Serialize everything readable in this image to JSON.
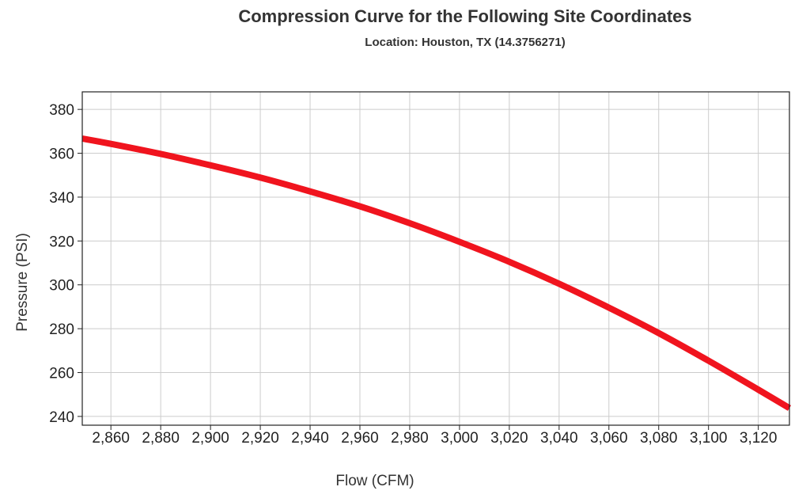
{
  "chart_data": {
    "type": "line",
    "title": "Compression Curve for the Following Site Coordinates",
    "subtitle": "Location: Houston, TX (14.3756271)",
    "xlabel": "Flow (CFM)",
    "ylabel": "Pressure (PSI)",
    "xlim": [
      2848.5,
      3132.5
    ],
    "ylim": [
      236,
      388
    ],
    "x_ticks": [
      2860,
      2880,
      2900,
      2920,
      2940,
      2960,
      2980,
      3000,
      3020,
      3040,
      3060,
      3080,
      3100,
      3120
    ],
    "x_tick_labels": [
      "2,860",
      "2,880",
      "2,900",
      "2,920",
      "2,940",
      "2,960",
      "2,980",
      "3,000",
      "3,020",
      "3,040",
      "3,060",
      "3,080",
      "3,100",
      "3,120"
    ],
    "y_ticks": [
      240,
      260,
      280,
      300,
      320,
      340,
      360,
      380
    ],
    "y_tick_labels": [
      "240",
      "260",
      "280",
      "300",
      "320",
      "340",
      "360",
      "380"
    ],
    "grid": true,
    "series": [
      {
        "color": "#f0141e",
        "x": [
          2848.5,
          2860,
          2880,
          2900,
          2920,
          2940,
          2960,
          2980,
          3000,
          3020,
          3040,
          3060,
          3080,
          3100,
          3120,
          3132.5
        ],
        "y": [
          366.7,
          364.3,
          359.7,
          354.5,
          348.9,
          342.6,
          335.8,
          328.1,
          319.6,
          310.5,
          300.5,
          289.6,
          278.0,
          265.4,
          252.2,
          243.8
        ]
      }
    ]
  }
}
